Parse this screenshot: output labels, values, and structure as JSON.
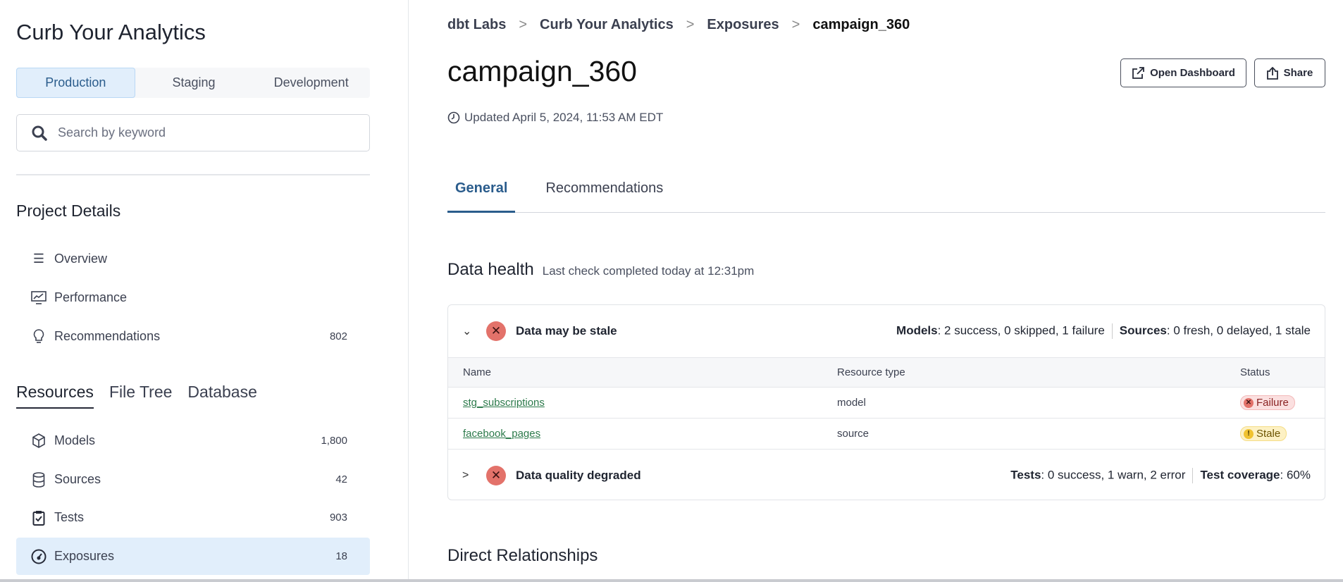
{
  "sidebar": {
    "app_title": "Curb Your Analytics",
    "environments": [
      "Production",
      "Staging",
      "Development"
    ],
    "search_placeholder": "Search by keyword",
    "project_details": {
      "heading": "Project Details",
      "items": [
        {
          "label": "Overview",
          "icon": "list-icon"
        },
        {
          "label": "Performance",
          "icon": "chart-monitor-icon"
        },
        {
          "label": "Recommendations",
          "icon": "lightbulb-icon",
          "count": "802"
        }
      ]
    },
    "resource_tabs": [
      "Resources",
      "File Tree",
      "Database"
    ],
    "resources": [
      {
        "label": "Models",
        "icon": "cube-icon",
        "count": "1,800"
      },
      {
        "label": "Sources",
        "icon": "database-icon",
        "count": "42"
      },
      {
        "label": "Tests",
        "icon": "clipboard-check-icon",
        "count": "903"
      },
      {
        "label": "Exposures",
        "icon": "gauge-icon",
        "count": "18"
      }
    ]
  },
  "breadcrumb": [
    "dbt Labs",
    "Curb Your Analytics",
    "Exposures",
    "campaign_360"
  ],
  "page": {
    "title": "campaign_360",
    "updated": "Updated April 5, 2024, 11:53 AM EDT",
    "open_dashboard": "Open Dashboard",
    "share": "Share"
  },
  "tabs": [
    "General",
    "Recommendations"
  ],
  "data_health": {
    "heading": "Data health",
    "subtitle": "Last check completed today at 12:31pm",
    "groups": [
      {
        "title": "Data may be stale",
        "stat1_label": "Models",
        "stat1": ": 2 success, 0 skipped, 1 failure",
        "stat2_label": "Sources",
        "stat2": ": 0 fresh, 0 delayed, 1 stale"
      },
      {
        "title": "Data quality degraded",
        "stat1_label": "Tests",
        "stat1": ": 0 success, 1 warn, 2 error",
        "stat2_label": "Test coverage",
        "stat2": ": 60%"
      }
    ],
    "table": {
      "headers": [
        "Name",
        "Resource type",
        "Status"
      ],
      "rows": [
        {
          "name": "stg_subscriptions",
          "type": "model",
          "status": "Failure"
        },
        {
          "name": "facebook_pages",
          "type": "source",
          "status": "Stale"
        }
      ]
    }
  },
  "direct_relationships": "Direct Relationships",
  "colors": {
    "accent": "#2a5c8c",
    "failure": "#e3726a",
    "stale": "#f0c230",
    "link": "#2c7a4b"
  }
}
